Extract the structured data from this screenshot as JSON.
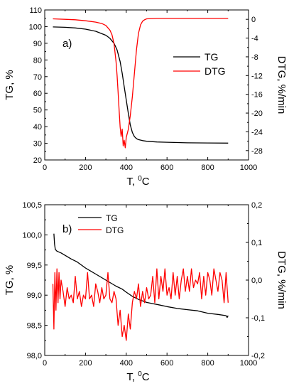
{
  "chart_data": [
    {
      "panel": "a)",
      "type": "line",
      "xlabel": "T, ",
      "xlabel_sup": "0",
      "xlabel_unit": "C",
      "ylabel": "TG, %",
      "y2label": "DTG, %/min",
      "xlim": [
        0,
        1000
      ],
      "ylim": [
        20,
        110
      ],
      "y2lim": [
        -30,
        2
      ],
      "x_ticks": [
        "0",
        "200",
        "400",
        "600",
        "800",
        "1000"
      ],
      "y_ticks": [
        "20",
        "30",
        "40",
        "50",
        "60",
        "70",
        "80",
        "90",
        "100",
        "110"
      ],
      "y2_ticks": [
        "0",
        "-4",
        "-8",
        "-12",
        "-16",
        "-20",
        "-24",
        "-28"
      ],
      "legend_position": "right",
      "series": [
        {
          "name": "TG",
          "axis": "left",
          "color": "#000000",
          "x": [
            40,
            100,
            150,
            200,
            250,
            300,
            320,
            340,
            355,
            370,
            380,
            390,
            400,
            410,
            420,
            430,
            440,
            450,
            460,
            480,
            500,
            550,
            600,
            700,
            800,
            900
          ],
          "y": [
            99.8,
            99.6,
            99.2,
            98.5,
            97.2,
            94.8,
            93.0,
            90.0,
            86.0,
            79.0,
            72.0,
            64.0,
            56.0,
            48.0,
            41.0,
            36.5,
            34.0,
            32.8,
            32.2,
            31.6,
            31.2,
            30.8,
            30.6,
            30.3,
            30.2,
            30.1
          ]
        },
        {
          "name": "DTG",
          "axis": "right",
          "color": "#ff0000",
          "x": [
            40,
            100,
            150,
            200,
            250,
            280,
            300,
            320,
            330,
            340,
            350,
            355,
            360,
            365,
            370,
            375,
            380,
            385,
            390,
            395,
            400,
            410,
            420,
            430,
            440,
            450,
            460,
            470,
            480,
            490,
            500,
            550,
            600,
            700,
            800,
            900
          ],
          "y": [
            0.1,
            0.0,
            -0.1,
            -0.3,
            -0.6,
            -0.9,
            -1.3,
            -2.3,
            -3.3,
            -5.2,
            -9.0,
            -12.0,
            -15.5,
            -19.5,
            -23.0,
            -25.0,
            -23.4,
            -27.0,
            -25.8,
            -27.4,
            -25.2,
            -23.5,
            -20.5,
            -16.5,
            -11.5,
            -6.5,
            -3.0,
            -1.2,
            -0.4,
            -0.1,
            0.1,
            0.2,
            0.2,
            0.2,
            0.2,
            0.2
          ]
        }
      ]
    },
    {
      "panel": "b)",
      "type": "line",
      "xlabel": "T, ",
      "xlabel_sup": "0",
      "xlabel_unit": "C",
      "ylabel": "TG, %",
      "y2label": "DTG, %/min",
      "xlim": [
        0,
        1000
      ],
      "ylim": [
        98.0,
        100.5
      ],
      "y2lim": [
        -0.2,
        0.2
      ],
      "x_ticks": [
        "0",
        "200",
        "400",
        "600",
        "800",
        "1000"
      ],
      "y_ticks": [
        "98,0",
        "98,5",
        "99,0",
        "99,5",
        "100,0",
        "100,5"
      ],
      "y2_ticks": [
        "-0,2",
        "-0,1",
        "0,0",
        "0,1",
        "0,2"
      ],
      "legend_position": "top-left",
      "series": [
        {
          "name": "TG",
          "axis": "left",
          "color": "#000000",
          "x": [
            45,
            48,
            52,
            60,
            80,
            100,
            130,
            160,
            200,
            250,
            300,
            350,
            380,
            400,
            430,
            460,
            500,
            530,
            560,
            600,
            650,
            700,
            750,
            800,
            850,
            890,
            895,
            900
          ],
          "y": [
            100.02,
            99.85,
            99.76,
            99.73,
            99.7,
            99.66,
            99.6,
            99.55,
            99.45,
            99.35,
            99.25,
            99.15,
            99.1,
            99.05,
            98.98,
            98.93,
            98.88,
            98.86,
            98.84,
            98.81,
            98.78,
            98.76,
            98.74,
            98.7,
            98.68,
            98.66,
            98.63,
            98.66
          ]
        },
        {
          "name": "DTG",
          "axis": "right",
          "color": "#ff0000",
          "x": [
            40,
            45,
            50,
            55,
            60,
            65,
            70,
            75,
            80,
            90,
            100,
            110,
            120,
            130,
            140,
            150,
            160,
            170,
            180,
            190,
            200,
            210,
            220,
            230,
            240,
            250,
            260,
            270,
            280,
            290,
            300,
            310,
            320,
            330,
            340,
            350,
            360,
            370,
            380,
            390,
            400,
            410,
            420,
            430,
            440,
            450,
            460,
            470,
            480,
            490,
            500,
            510,
            520,
            530,
            540,
            550,
            560,
            570,
            580,
            590,
            600,
            610,
            620,
            630,
            640,
            650,
            660,
            670,
            680,
            690,
            700,
            710,
            720,
            730,
            740,
            750,
            760,
            770,
            780,
            790,
            800,
            810,
            820,
            830,
            840,
            850,
            860,
            870,
            880,
            890,
            900
          ],
          "y": [
            -0.01,
            -0.13,
            0.02,
            -0.08,
            0.03,
            -0.06,
            0.02,
            -0.05,
            0.0,
            -0.03,
            -0.07,
            -0.02,
            -0.05,
            -0.04,
            -0.06,
            0.01,
            -0.05,
            -0.03,
            -0.07,
            -0.04,
            -0.05,
            0.02,
            -0.05,
            -0.04,
            -0.07,
            -0.01,
            -0.03,
            -0.06,
            -0.02,
            -0.05,
            -0.04,
            0.02,
            -0.05,
            -0.06,
            -0.03,
            -0.05,
            -0.12,
            -0.08,
            -0.15,
            -0.12,
            -0.16,
            -0.09,
            -0.13,
            -0.06,
            -0.03,
            -0.05,
            -0.01,
            -0.07,
            -0.03,
            -0.06,
            -0.02,
            -0.05,
            -0.04,
            0.01,
            -0.06,
            0.03,
            -0.05,
            0.01,
            -0.03,
            0.03,
            -0.04,
            -0.02,
            -0.05,
            0.02,
            -0.04,
            0.01,
            -0.05,
            0.0,
            0.03,
            -0.03,
            0.01,
            -0.03,
            0.03,
            -0.02,
            0.0,
            -0.01,
            0.02,
            -0.05,
            0.01,
            -0.04,
            0.02,
            0.0,
            -0.04,
            0.03,
            0.0,
            -0.03,
            0.02,
            0.0,
            -0.06,
            0.02,
            -0.06
          ]
        }
      ]
    }
  ]
}
